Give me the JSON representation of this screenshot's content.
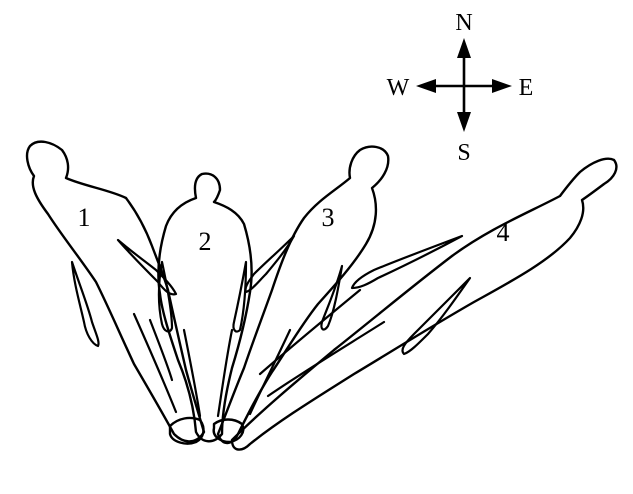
{
  "figures": [
    {
      "label": "1"
    },
    {
      "label": "2"
    },
    {
      "label": "3"
    },
    {
      "label": "4"
    }
  ],
  "compass": {
    "north": "N",
    "south": "S",
    "east": "E",
    "west": "W"
  }
}
